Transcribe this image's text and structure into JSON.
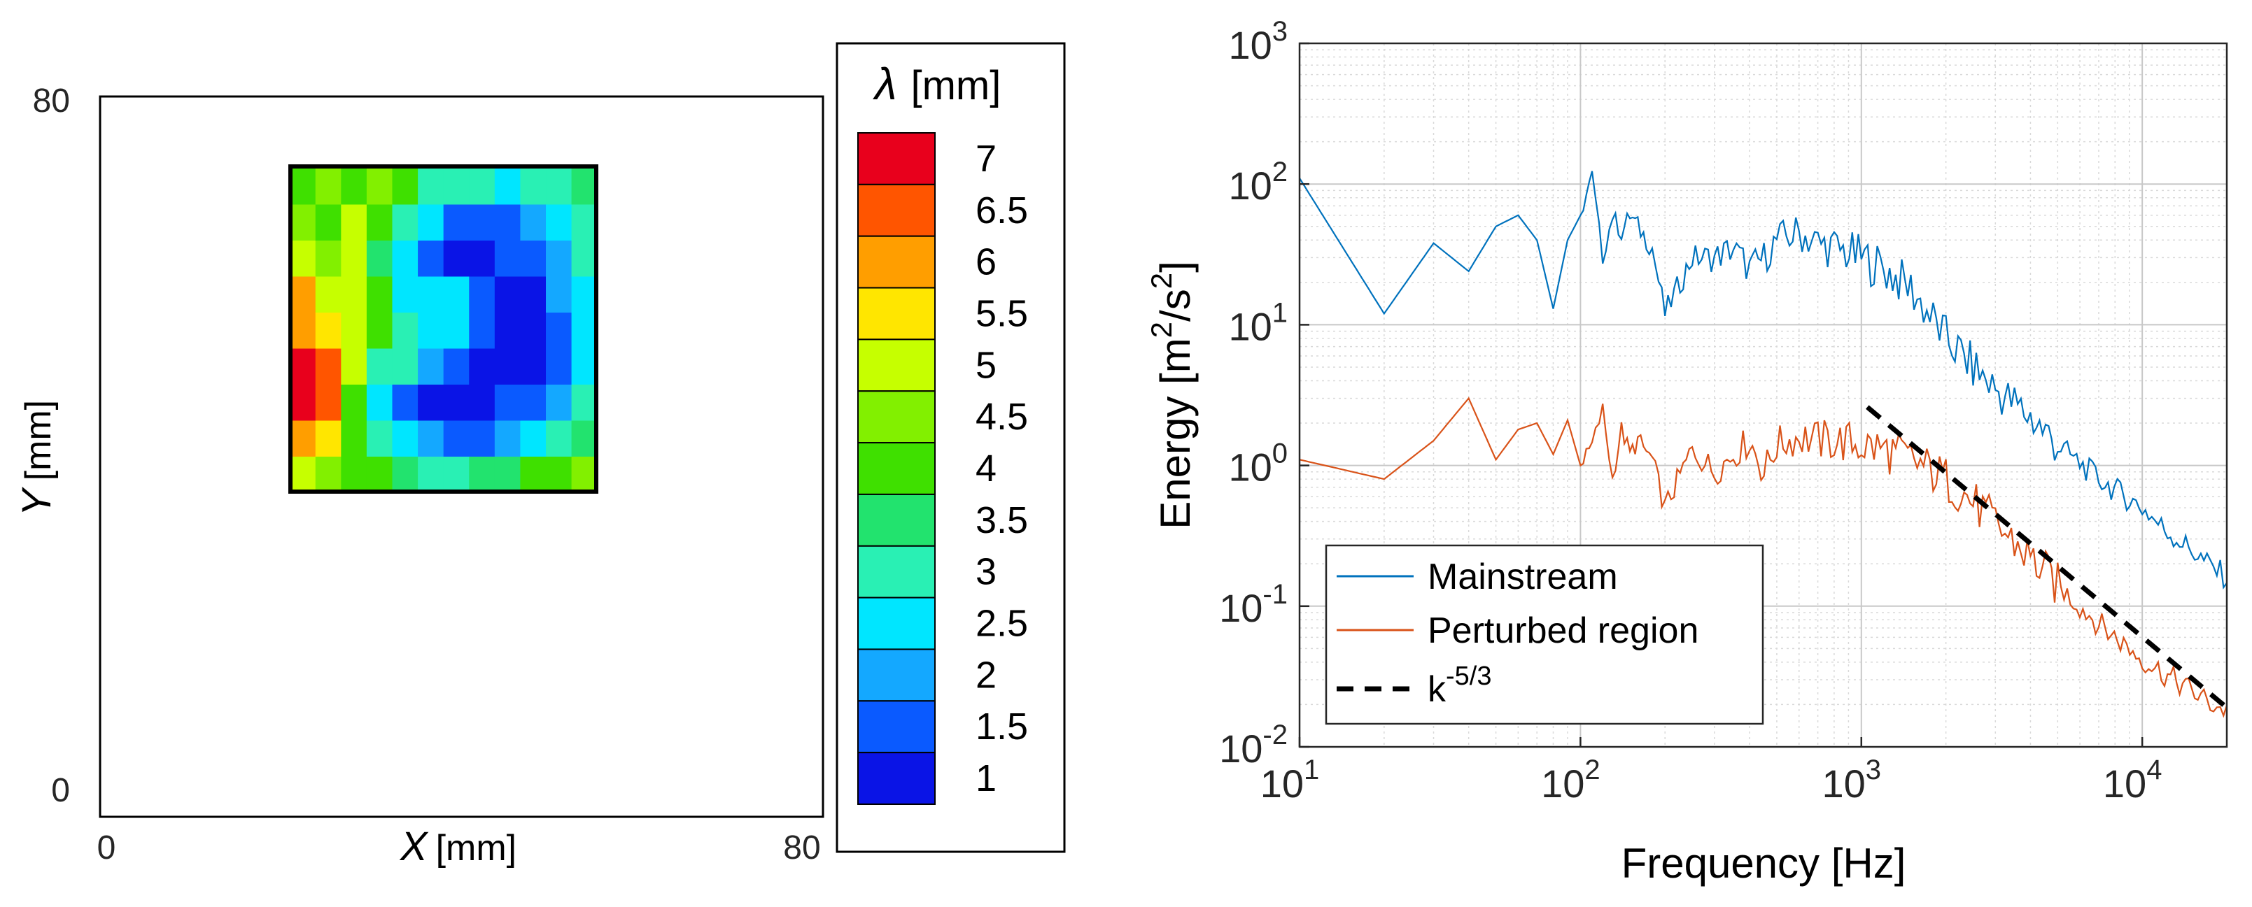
{
  "chart_data": [
    {
      "type": "heatmap",
      "title": "",
      "xlabel": "X",
      "xunit": "[mm]",
      "ylabel": "Y",
      "yunit": "[mm]",
      "xlim": [
        0,
        80
      ],
      "ylim": [
        0,
        80
      ],
      "x_ticks": [
        "0",
        "80"
      ],
      "y_ticks": [
        "0",
        "80"
      ],
      "measured_region": {
        "x": [
          21,
          55
        ],
        "y": [
          36,
          72
        ]
      },
      "colorbar": {
        "label_symbol": "λ",
        "label_unit": "[mm]",
        "ticks": [
          "7",
          "6.5",
          "6",
          "5.5",
          "5",
          "4.5",
          "4",
          "3.5",
          "3",
          "2.5",
          "2",
          "1.5",
          "1"
        ],
        "colors": [
          "#e8001c",
          "#ff5500",
          "#ff9e00",
          "#ffe600",
          "#c6ff00",
          "#82f000",
          "#3fe000",
          "#22e36e",
          "#29f0b4",
          "#00e6ff",
          "#14a8ff",
          "#0a5aff",
          "#0a14e6"
        ]
      },
      "grid": [
        [
          4.0,
          4.3,
          4.2,
          4.5,
          3.9,
          3.2,
          3.0,
          3.1,
          2.4,
          3.0,
          3.2,
          3.6
        ],
        [
          4.3,
          4.0,
          5.0,
          4.2,
          3.1,
          2.5,
          1.7,
          1.4,
          1.6,
          2.0,
          2.6,
          3.2
        ],
        [
          5.2,
          4.5,
          4.8,
          3.6,
          2.5,
          1.5,
          1.2,
          1.2,
          1.3,
          1.4,
          2.2,
          2.8
        ],
        [
          5.8,
          5.0,
          4.8,
          4.0,
          2.4,
          2.3,
          2.6,
          1.4,
          1.2,
          1.1,
          1.9,
          2.6
        ],
        [
          6.2,
          5.6,
          5.0,
          3.8,
          3.2,
          2.6,
          2.6,
          1.3,
          1.0,
          1.0,
          1.6,
          2.4
        ],
        [
          6.8,
          6.6,
          4.8,
          2.8,
          2.9,
          2.0,
          1.4,
          1.1,
          1.1,
          1.2,
          1.6,
          2.6
        ],
        [
          7.0,
          6.5,
          4.0,
          2.4,
          1.6,
          1.2,
          1.1,
          1.2,
          1.4,
          1.5,
          2.1,
          3.0
        ],
        [
          6.2,
          5.6,
          4.0,
          3.0,
          2.4,
          1.8,
          1.5,
          1.6,
          1.9,
          2.5,
          3.0,
          3.6
        ],
        [
          5.2,
          4.4,
          4.2,
          4.0,
          3.6,
          3.2,
          3.2,
          3.4,
          3.6,
          3.9,
          4.1,
          4.3
        ]
      ]
    },
    {
      "type": "line",
      "title": "",
      "xlabel": "Frequency [Hz]",
      "ylabel": "Energy [m",
      "ylabel_sup1": "2",
      "ylabel_mid": "/s",
      "ylabel_sup2": "2",
      "ylabel_end": "]",
      "xscale": "log",
      "yscale": "log",
      "xlim": [
        10,
        20000
      ],
      "ylim": [
        0.01,
        1000
      ],
      "x_ticks": [
        {
          "base": "10",
          "exp": "1"
        },
        {
          "base": "10",
          "exp": "2"
        },
        {
          "base": "10",
          "exp": "3"
        },
        {
          "base": "10",
          "exp": "4"
        }
      ],
      "y_ticks": [
        {
          "base": "10",
          "exp": "-2"
        },
        {
          "base": "10",
          "exp": "-1"
        },
        {
          "base": "10",
          "exp": "0"
        },
        {
          "base": "10",
          "exp": "1"
        },
        {
          "base": "10",
          "exp": "2"
        },
        {
          "base": "10",
          "exp": "3"
        }
      ],
      "grid": true,
      "legend_position": "bottom-left",
      "series": [
        {
          "name": "Mainstream",
          "color": "#0072bd",
          "style": "solid",
          "x": [
            10,
            20,
            30,
            40,
            50,
            60,
            70,
            80,
            90,
            100,
            110,
            120,
            130,
            140,
            150,
            160,
            180,
            200,
            250,
            300,
            350,
            400,
            450,
            500,
            600,
            700,
            800,
            1000,
            1200,
            1500,
            2000,
            2500,
            3000,
            4000,
            5000,
            7000,
            10000,
            12000,
            15000,
            17000,
            20000
          ],
          "y": [
            110,
            12,
            38,
            24,
            50,
            60,
            40,
            13,
            40,
            60,
            115,
            30,
            60,
            45,
            60,
            50,
            35,
            12,
            30,
            30,
            35,
            25,
            30,
            40,
            45,
            38,
            35,
            30,
            25,
            18,
            8,
            5,
            3.5,
            2.2,
            1.4,
            0.8,
            0.5,
            0.35,
            0.25,
            0.2,
            0.16
          ]
        },
        {
          "name": "Perturbed region",
          "color": "#d95319",
          "style": "solid",
          "x": [
            10,
            20,
            30,
            40,
            50,
            60,
            70,
            80,
            90,
            100,
            110,
            120,
            130,
            140,
            150,
            160,
            180,
            200,
            250,
            300,
            350,
            400,
            450,
            500,
            600,
            700,
            800,
            1000,
            1200,
            1500,
            2000,
            2500,
            3000,
            4000,
            5000,
            7000,
            10000,
            12000,
            15000,
            17000,
            20000
          ],
          "y": [
            1.1,
            0.8,
            1.5,
            3.0,
            1.1,
            1.8,
            2.0,
            1.2,
            2.1,
            1.0,
            1.4,
            2.5,
            0.8,
            1.8,
            1.2,
            1.5,
            1.1,
            0.5,
            1.3,
            0.9,
            1.2,
            1.5,
            0.9,
            1.4,
            1.6,
            1.5,
            1.5,
            1.4,
            1.3,
            1.1,
            0.8,
            0.55,
            0.38,
            0.22,
            0.14,
            0.075,
            0.042,
            0.033,
            0.025,
            0.021,
            0.018
          ]
        },
        {
          "name": "k",
          "name_sup": "-5/3",
          "color": "#000000",
          "style": "dashed",
          "x": [
            1050,
            20000
          ],
          "y": [
            2.6,
            0.019
          ]
        }
      ]
    }
  ]
}
